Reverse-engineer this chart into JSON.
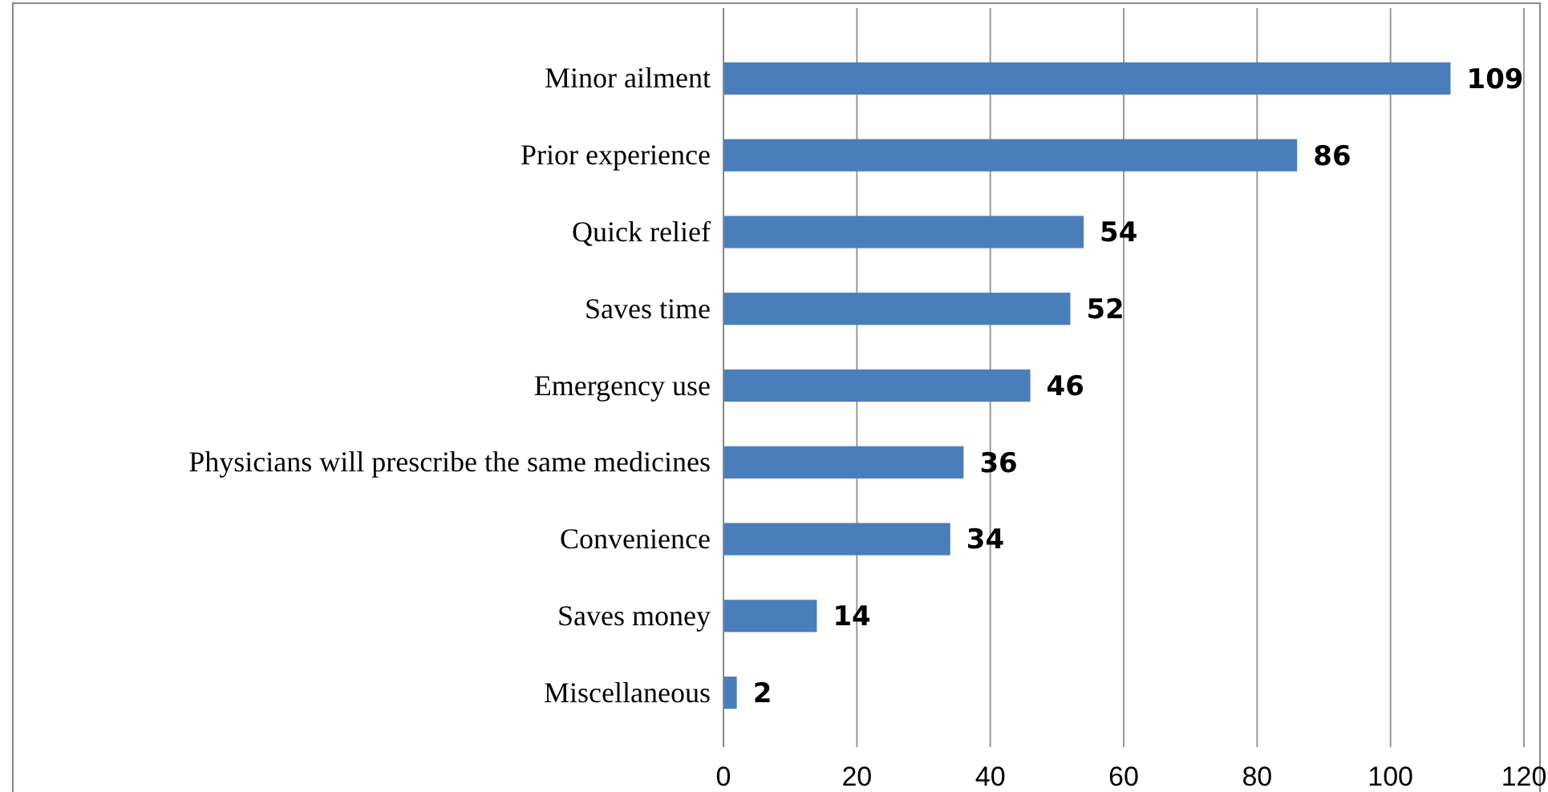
{
  "chart_data": {
    "type": "bar",
    "orientation": "horizontal",
    "categories": [
      "Minor ailment",
      "Prior experience",
      "Quick relief",
      "Saves time",
      "Emergency use",
      "Physicians will prescribe the same medicines",
      "Convenience",
      "Saves money",
      "Miscellaneous"
    ],
    "values": [
      109,
      86,
      54,
      52,
      46,
      36,
      34,
      14,
      2
    ],
    "color": "#4a7ebb",
    "xlim": [
      0,
      120
    ],
    "xticks": [
      0,
      20,
      40,
      60,
      80,
      100,
      120
    ],
    "grid": "x",
    "data_labels": true
  }
}
